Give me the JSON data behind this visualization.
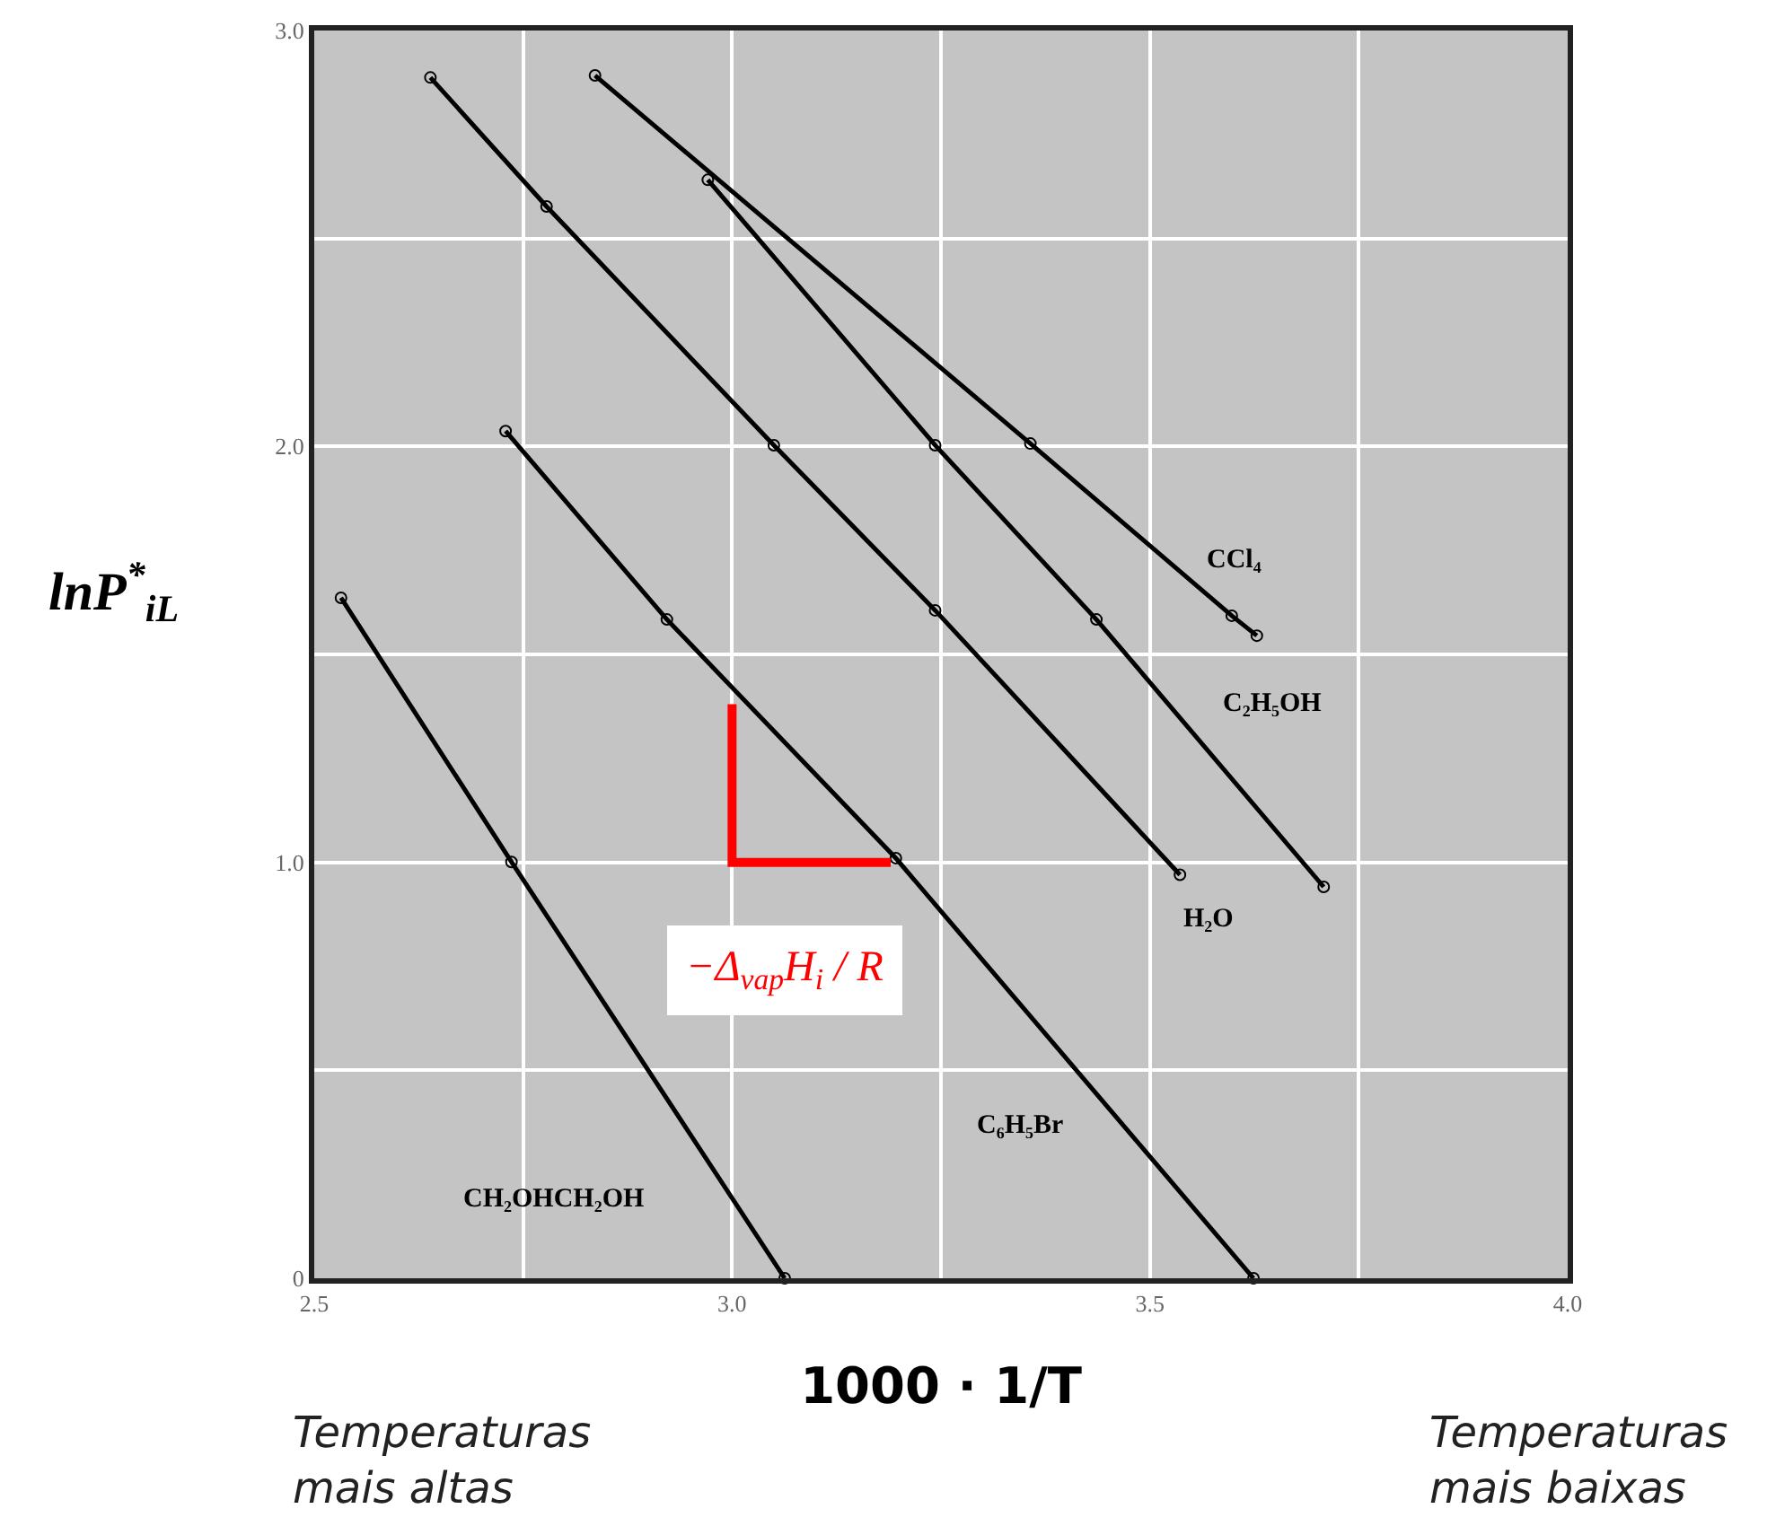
{
  "chart_data": {
    "type": "line",
    "xlabel": "1000 · 1/T",
    "ylabel": "lnP$^{*}$$_{iL}$",
    "xlim": [
      2.5,
      4.0
    ],
    "ylim": [
      0,
      3.0
    ],
    "xticks": [
      2.5,
      {
        "value": 2.75,
        "label": null
      },
      {
        "value": 3.0,
        "label": "3.0"
      },
      {
        "value": 3.25,
        "label": null
      },
      3.5,
      {
        "value": 3.75,
        "label": null
      },
      {
        "value": 4.0,
        "label": "4.0"
      }
    ],
    "yticks": [
      0,
      {
        "value": 0.5,
        "label": null
      },
      {
        "value": 1.0,
        "label": "1.0"
      },
      {
        "value": 1.5,
        "label": null
      },
      {
        "value": 2.0,
        "label": "2.0"
      },
      {
        "value": 2.5,
        "label": null
      },
      {
        "value": 3.0,
        "label": "3.0"
      }
    ],
    "grid": true,
    "legend": false,
    "marker": "circle",
    "line_style": "solid",
    "series": [
      {
        "name": "CCl₄",
        "color": "#000000",
        "x": [
          2.836,
          3.357,
          3.598,
          3.628
        ],
        "values": [
          2.892,
          2.007,
          1.593,
          1.545
        ]
      },
      {
        "name": "C₂H₅OH",
        "color": "#000000",
        "x": [
          2.971,
          3.243,
          3.436,
          3.708
        ],
        "values": [
          2.641,
          2.003,
          1.584,
          0.941
        ]
      },
      {
        "name": "H₂O",
        "color": "#000000",
        "x": [
          2.639,
          2.778,
          3.05,
          3.243,
          3.536
        ],
        "values": [
          2.887,
          2.577,
          2.003,
          1.606,
          0.97
        ]
      },
      {
        "name": "C₆H₅Br",
        "color": "#000000",
        "x": [
          2.729,
          2.922,
          3.196,
          3.624
        ],
        "values": [
          2.037,
          1.584,
          1.01,
          0
        ]
      },
      {
        "name": "CH₂OHCH₂OH",
        "color": "#000000",
        "x": [
          2.532,
          2.736,
          3.063
        ],
        "values": [
          1.636,
          1.001,
          0
        ]
      },
      {
        "color": "#ff0000",
        "marker": "none",
        "x": [
          3.0,
          3.0,
          3.19
        ],
        "values": [
          1.38,
          1.0,
          1.0
        ]
      }
    ],
    "annotations": [
      "−Δ$_{vap}$H$_{i}$ / R",
      "Temperaturas\nmais altas",
      "Temperaturas\nmais baixas"
    ]
  }
}
